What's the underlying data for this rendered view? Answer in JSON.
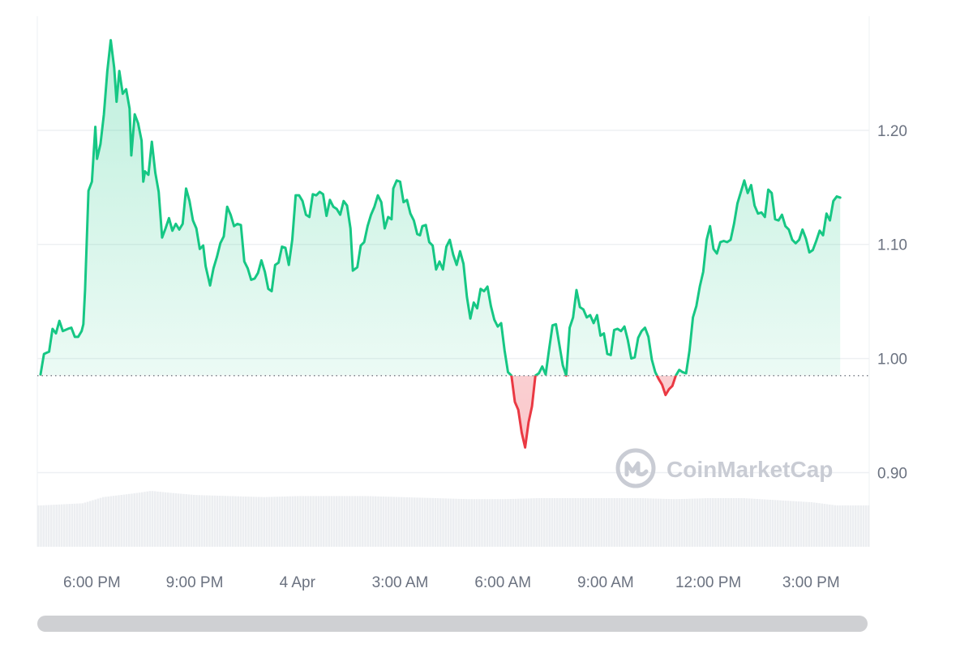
{
  "chart_data": {
    "type": "area",
    "title": "",
    "xlabel": "",
    "ylabel": "",
    "baseline": 0.985,
    "ylim": [
      0.835,
      1.3
    ],
    "y_ticks": [
      {
        "value": 1.2,
        "label": "1.20"
      },
      {
        "value": 1.1,
        "label": "1.10"
      },
      {
        "value": 1.0,
        "label": "1.00"
      },
      {
        "value": 0.9,
        "label": "0.90"
      }
    ],
    "x_range_hours": [
      0,
      24.15
    ],
    "x_ticks": [
      {
        "t": 1.5,
        "label": "6:00 PM"
      },
      {
        "t": 4.5,
        "label": "9:00 PM"
      },
      {
        "t": 7.5,
        "label": "4 Apr"
      },
      {
        "t": 10.5,
        "label": "3:00 AM"
      },
      {
        "t": 13.5,
        "label": "6:00 AM"
      },
      {
        "t": 16.5,
        "label": "9:00 AM"
      },
      {
        "t": 19.5,
        "label": "12:00 PM"
      },
      {
        "t": 22.5,
        "label": "3:00 PM"
      }
    ],
    "colors": {
      "up": "#16c784",
      "down": "#ea3943",
      "up_fill": "#16c784",
      "down_fill": "#ea3943",
      "grid": "#eef0f3",
      "volume": "#eceef1",
      "baseline": "#7d838c"
    },
    "series": [
      {
        "points": [
          [
            0.0,
            0.986
          ],
          [
            0.1,
            1.004
          ],
          [
            0.25,
            1.006
          ],
          [
            0.35,
            1.026
          ],
          [
            0.45,
            1.022
          ],
          [
            0.55,
            1.033
          ],
          [
            0.65,
            1.024
          ],
          [
            0.8,
            1.026
          ],
          [
            0.9,
            1.027
          ],
          [
            1.0,
            1.019
          ],
          [
            1.1,
            1.019
          ],
          [
            1.2,
            1.024
          ],
          [
            1.25,
            1.03
          ],
          [
            1.3,
            1.06
          ],
          [
            1.4,
            1.147
          ],
          [
            1.5,
            1.155
          ],
          [
            1.6,
            1.203
          ],
          [
            1.65,
            1.175
          ],
          [
            1.75,
            1.188
          ],
          [
            1.85,
            1.214
          ],
          [
            1.95,
            1.252
          ],
          [
            2.05,
            1.279
          ],
          [
            2.15,
            1.255
          ],
          [
            2.22,
            1.225
          ],
          [
            2.3,
            1.252
          ],
          [
            2.4,
            1.232
          ],
          [
            2.5,
            1.236
          ],
          [
            2.6,
            1.219
          ],
          [
            2.65,
            1.178
          ],
          [
            2.75,
            1.214
          ],
          [
            2.85,
            1.206
          ],
          [
            2.95,
            1.191
          ],
          [
            3.0,
            1.155
          ],
          [
            3.05,
            1.164
          ],
          [
            3.15,
            1.161
          ],
          [
            3.25,
            1.19
          ],
          [
            3.35,
            1.163
          ],
          [
            3.45,
            1.146
          ],
          [
            3.55,
            1.106
          ],
          [
            3.65,
            1.114
          ],
          [
            3.75,
            1.123
          ],
          [
            3.85,
            1.112
          ],
          [
            3.95,
            1.118
          ],
          [
            4.05,
            1.113
          ],
          [
            4.15,
            1.118
          ],
          [
            4.25,
            1.149
          ],
          [
            4.35,
            1.138
          ],
          [
            4.45,
            1.121
          ],
          [
            4.55,
            1.114
          ],
          [
            4.65,
            1.096
          ],
          [
            4.75,
            1.099
          ],
          [
            4.82,
            1.081
          ],
          [
            4.95,
            1.064
          ],
          [
            5.05,
            1.079
          ],
          [
            5.15,
            1.089
          ],
          [
            5.25,
            1.101
          ],
          [
            5.35,
            1.107
          ],
          [
            5.45,
            1.133
          ],
          [
            5.55,
            1.126
          ],
          [
            5.65,
            1.116
          ],
          [
            5.75,
            1.118
          ],
          [
            5.85,
            1.117
          ],
          [
            5.95,
            1.085
          ],
          [
            6.05,
            1.079
          ],
          [
            6.15,
            1.069
          ],
          [
            6.25,
            1.07
          ],
          [
            6.35,
            1.075
          ],
          [
            6.45,
            1.086
          ],
          [
            6.55,
            1.076
          ],
          [
            6.65,
            1.061
          ],
          [
            6.75,
            1.059
          ],
          [
            6.85,
            1.082
          ],
          [
            6.95,
            1.084
          ],
          [
            7.05,
            1.098
          ],
          [
            7.15,
            1.097
          ],
          [
            7.25,
            1.082
          ],
          [
            7.35,
            1.104
          ],
          [
            7.45,
            1.143
          ],
          [
            7.55,
            1.143
          ],
          [
            7.65,
            1.138
          ],
          [
            7.75,
            1.126
          ],
          [
            7.85,
            1.124
          ],
          [
            7.95,
            1.144
          ],
          [
            8.05,
            1.143
          ],
          [
            8.15,
            1.146
          ],
          [
            8.25,
            1.144
          ],
          [
            8.35,
            1.125
          ],
          [
            8.45,
            1.139
          ],
          [
            8.55,
            1.133
          ],
          [
            8.65,
            1.131
          ],
          [
            8.75,
            1.126
          ],
          [
            8.85,
            1.138
          ],
          [
            8.95,
            1.134
          ],
          [
            9.05,
            1.114
          ],
          [
            9.12,
            1.077
          ],
          [
            9.25,
            1.08
          ],
          [
            9.35,
            1.099
          ],
          [
            9.45,
            1.102
          ],
          [
            9.55,
            1.116
          ],
          [
            9.65,
            1.126
          ],
          [
            9.75,
            1.133
          ],
          [
            9.85,
            1.143
          ],
          [
            9.95,
            1.137
          ],
          [
            10.05,
            1.114
          ],
          [
            10.15,
            1.124
          ],
          [
            10.25,
            1.122
          ],
          [
            10.3,
            1.149
          ],
          [
            10.4,
            1.156
          ],
          [
            10.5,
            1.155
          ],
          [
            10.6,
            1.137
          ],
          [
            10.7,
            1.139
          ],
          [
            10.8,
            1.127
          ],
          [
            10.9,
            1.121
          ],
          [
            11.0,
            1.109
          ],
          [
            11.08,
            1.108
          ],
          [
            11.15,
            1.116
          ],
          [
            11.25,
            1.117
          ],
          [
            11.35,
            1.102
          ],
          [
            11.45,
            1.099
          ],
          [
            11.55,
            1.078
          ],
          [
            11.65,
            1.085
          ],
          [
            11.75,
            1.078
          ],
          [
            11.85,
            1.098
          ],
          [
            11.95,
            1.104
          ],
          [
            12.05,
            1.091
          ],
          [
            12.15,
            1.082
          ],
          [
            12.25,
            1.094
          ],
          [
            12.35,
            1.083
          ],
          [
            12.45,
            1.054
          ],
          [
            12.55,
            1.035
          ],
          [
            12.65,
            1.049
          ],
          [
            12.75,
            1.044
          ],
          [
            12.85,
            1.061
          ],
          [
            12.95,
            1.059
          ],
          [
            13.05,
            1.063
          ],
          [
            13.15,
            1.046
          ],
          [
            13.25,
            1.034
          ],
          [
            13.35,
            1.028
          ],
          [
            13.45,
            1.031
          ],
          [
            13.55,
            1.007
          ],
          [
            13.65,
            0.988
          ],
          [
            13.75,
            0.985
          ],
          [
            13.85,
            0.962
          ],
          [
            13.95,
            0.955
          ],
          [
            14.05,
            0.935
          ],
          [
            14.15,
            0.922
          ],
          [
            14.25,
            0.944
          ],
          [
            14.35,
            0.958
          ],
          [
            14.45,
            0.985
          ],
          [
            14.55,
            0.987
          ],
          [
            14.65,
            0.993
          ],
          [
            14.75,
            0.986
          ],
          [
            14.85,
            1.008
          ],
          [
            14.95,
            1.029
          ],
          [
            15.05,
            1.03
          ],
          [
            15.15,
            1.012
          ],
          [
            15.25,
            0.994
          ],
          [
            15.35,
            0.985
          ],
          [
            15.45,
            1.027
          ],
          [
            15.55,
            1.036
          ],
          [
            15.65,
            1.06
          ],
          [
            15.75,
            1.045
          ],
          [
            15.85,
            1.043
          ],
          [
            15.95,
            1.036
          ],
          [
            16.05,
            1.038
          ],
          [
            16.15,
            1.031
          ],
          [
            16.25,
            1.038
          ],
          [
            16.35,
            1.02
          ],
          [
            16.45,
            1.022
          ],
          [
            16.55,
            1.004
          ],
          [
            16.65,
            1.003
          ],
          [
            16.75,
            1.025
          ],
          [
            16.85,
            1.026
          ],
          [
            16.95,
            1.024
          ],
          [
            17.05,
            1.028
          ],
          [
            17.15,
            1.016
          ],
          [
            17.25,
            1.0
          ],
          [
            17.35,
            1.001
          ],
          [
            17.45,
            1.018
          ],
          [
            17.55,
            1.024
          ],
          [
            17.65,
            1.027
          ],
          [
            17.75,
            1.019
          ],
          [
            17.85,
            0.999
          ],
          [
            17.95,
            0.988
          ],
          [
            18.05,
            0.982
          ],
          [
            18.15,
            0.977
          ],
          [
            18.25,
            0.968
          ],
          [
            18.35,
            0.973
          ],
          [
            18.45,
            0.976
          ],
          [
            18.55,
            0.985
          ],
          [
            18.65,
            0.99
          ],
          [
            18.75,
            0.988
          ],
          [
            18.85,
            0.987
          ],
          [
            18.95,
            1.007
          ],
          [
            19.05,
            1.036
          ],
          [
            19.15,
            1.046
          ],
          [
            19.25,
            1.063
          ],
          [
            19.35,
            1.076
          ],
          [
            19.45,
            1.104
          ],
          [
            19.55,
            1.116
          ],
          [
            19.65,
            1.096
          ],
          [
            19.75,
            1.092
          ],
          [
            19.85,
            1.102
          ],
          [
            19.95,
            1.103
          ],
          [
            20.05,
            1.102
          ],
          [
            20.15,
            1.104
          ],
          [
            20.25,
            1.118
          ],
          [
            20.35,
            1.136
          ],
          [
            20.45,
            1.146
          ],
          [
            20.55,
            1.156
          ],
          [
            20.65,
            1.145
          ],
          [
            20.75,
            1.152
          ],
          [
            20.85,
            1.134
          ],
          [
            20.95,
            1.127
          ],
          [
            21.05,
            1.128
          ],
          [
            21.15,
            1.124
          ],
          [
            21.25,
            1.148
          ],
          [
            21.35,
            1.145
          ],
          [
            21.45,
            1.122
          ],
          [
            21.55,
            1.121
          ],
          [
            21.65,
            1.126
          ],
          [
            21.75,
            1.116
          ],
          [
            21.85,
            1.113
          ],
          [
            21.95,
            1.104
          ],
          [
            22.05,
            1.101
          ],
          [
            22.15,
            1.104
          ],
          [
            22.25,
            1.113
          ],
          [
            22.35,
            1.105
          ],
          [
            22.45,
            1.093
          ],
          [
            22.55,
            1.095
          ],
          [
            22.65,
            1.103
          ],
          [
            22.75,
            1.112
          ],
          [
            22.85,
            1.108
          ],
          [
            22.95,
            1.127
          ],
          [
            23.05,
            1.121
          ],
          [
            23.15,
            1.138
          ],
          [
            23.25,
            1.142
          ],
          [
            23.35,
            1.141
          ]
        ]
      }
    ],
    "volume_levels": [
      [
        0.0,
        0.2
      ],
      [
        1.2,
        0.21
      ],
      [
        1.8,
        0.24
      ],
      [
        2.3,
        0.25
      ],
      [
        2.8,
        0.26
      ],
      [
        3.2,
        0.27
      ],
      [
        3.8,
        0.26
      ],
      [
        4.5,
        0.25
      ],
      [
        5.5,
        0.245
      ],
      [
        6.5,
        0.24
      ],
      [
        7.5,
        0.245
      ],
      [
        8.5,
        0.245
      ],
      [
        9.5,
        0.245
      ],
      [
        10.5,
        0.24
      ],
      [
        11.5,
        0.235
      ],
      [
        12.5,
        0.23
      ],
      [
        13.5,
        0.23
      ],
      [
        14.5,
        0.235
      ],
      [
        15.5,
        0.235
      ],
      [
        16.5,
        0.235
      ],
      [
        17.5,
        0.235
      ],
      [
        18.5,
        0.23
      ],
      [
        19.5,
        0.235
      ],
      [
        20.5,
        0.235
      ],
      [
        21.5,
        0.225
      ],
      [
        22.5,
        0.215
      ],
      [
        23.2,
        0.2
      ],
      [
        24.15,
        0.2
      ]
    ]
  },
  "watermark": {
    "text": "CoinMarketCap",
    "icon": "coinmarketcap-logo-icon"
  },
  "scrollbar": {
    "icon": "horizontal-scrollbar"
  }
}
